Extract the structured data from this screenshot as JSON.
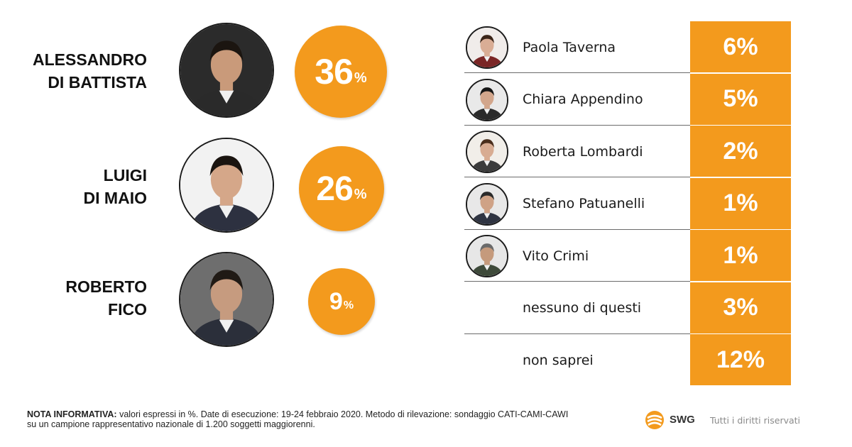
{
  "colors": {
    "accent": "#f39a1d",
    "text": "#1a1a1a",
    "muted": "#8a8a8a"
  },
  "chart_data": [
    {
      "type": "bar",
      "categories": [
        "ALESSANDRO DI BATTISTA",
        "LUIGI DI MAIO",
        "ROBERTO FICO"
      ],
      "values": [
        36,
        26,
        9
      ],
      "unit": "%"
    },
    {
      "type": "table",
      "categories": [
        "Paola Taverna",
        "Chiara Appendino",
        "Roberta Lombardi",
        "Stefano Patuanelli",
        "Vito Crimi",
        "nessuno di questi",
        "non saprei"
      ],
      "values": [
        6,
        5,
        2,
        1,
        1,
        3,
        12
      ],
      "unit": "%"
    }
  ],
  "left": {
    "candidates": [
      {
        "line1": "ALESSANDRO",
        "line2": "DI BATTISTA",
        "value": "36",
        "pct": "%",
        "avatar_icon": "portrait-icon"
      },
      {
        "line1": "LUIGI",
        "line2": "DI MAIO",
        "value": "26",
        "pct": "%",
        "avatar_icon": "portrait-icon"
      },
      {
        "line1": "ROBERTO",
        "line2": "FICO",
        "value": "9",
        "pct": "%",
        "avatar_icon": "portrait-icon"
      }
    ]
  },
  "right": {
    "rows": [
      {
        "name": "Paola Taverna",
        "value": "6%",
        "avatar": true
      },
      {
        "name": "Chiara Appendino",
        "value": "5%",
        "avatar": true
      },
      {
        "name": "Roberta Lombardi",
        "value": "2%",
        "avatar": true
      },
      {
        "name": "Stefano Patuanelli",
        "value": "1%",
        "avatar": true
      },
      {
        "name": "Vito Crimi",
        "value": "1%",
        "avatar": true
      },
      {
        "name": "nessuno di questi",
        "value": "3%",
        "avatar": false
      },
      {
        "name": "non saprei",
        "value": "12%",
        "avatar": false
      }
    ]
  },
  "footer": {
    "note_label": "NOTA INFORMATIVA:",
    "note_text": " valori espressi in %. Date di esecuzione: 19-24 febbraio 2020. Metodo di rilevazione: sondaggio CATI-CAMI-CAWI",
    "note_line2": "su un campione rappresentativo nazionale di 1.200 soggetti maggiorenni.",
    "logo_text": "SWG",
    "rights": "Tutti i diritti riservati"
  }
}
